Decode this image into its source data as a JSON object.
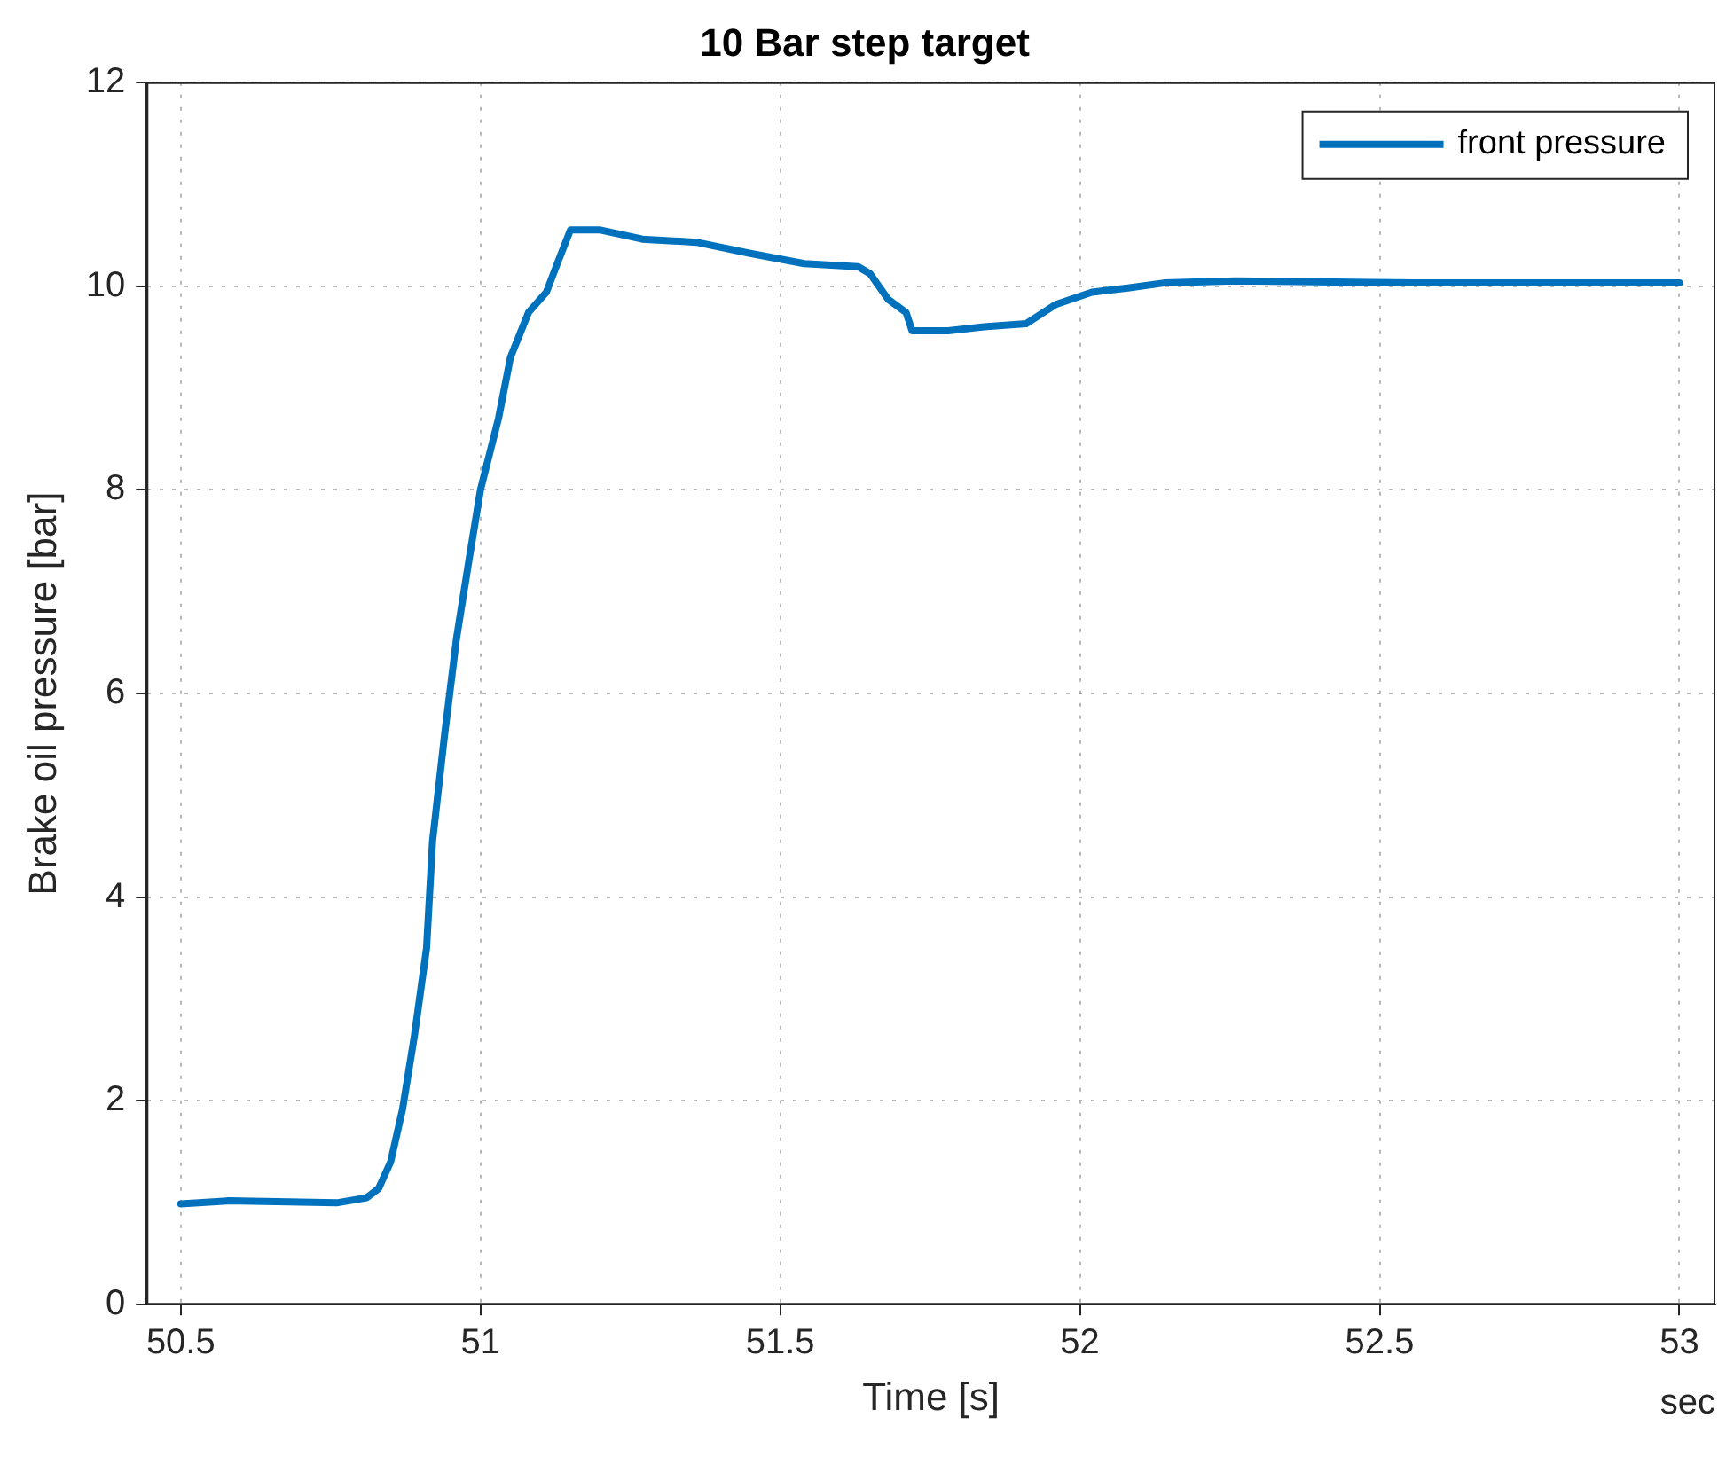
{
  "chart_data": {
    "type": "line",
    "title": "10 Bar step target",
    "xlabel": "Time [s]",
    "ylabel": "Brake oil pressure [bar]",
    "annotations": [
      "sec"
    ],
    "x": [
      50.5,
      50.58,
      50.76,
      50.81,
      50.83,
      50.85,
      50.87,
      50.89,
      50.91,
      50.92,
      50.94,
      50.96,
      50.98,
      51.0,
      51.03,
      51.05,
      51.08,
      51.11,
      51.13,
      51.15,
      51.2,
      51.27,
      51.36,
      51.45,
      51.54,
      51.63,
      51.65,
      51.68,
      51.71,
      51.72,
      51.78,
      51.84,
      51.91,
      51.96,
      52.02,
      52.08,
      52.14,
      52.26,
      52.56,
      52.86,
      53.0
    ],
    "series": [
      {
        "name": "front pressure",
        "color": "#0072bd",
        "values": [
          0.99,
          1.02,
          1.0,
          1.05,
          1.14,
          1.4,
          1.92,
          2.65,
          3.5,
          4.55,
          5.59,
          6.54,
          7.28,
          8.0,
          8.7,
          9.3,
          9.74,
          9.94,
          10.25,
          10.55,
          10.55,
          10.46,
          10.43,
          10.32,
          10.22,
          10.19,
          10.12,
          9.87,
          9.74,
          9.56,
          9.56,
          9.6,
          9.63,
          9.82,
          9.94,
          9.98,
          10.03,
          10.05,
          10.03,
          10.03,
          10.03
        ]
      }
    ],
    "xlim": [
      50.443,
      53.06
    ],
    "xticks": [
      50.5,
      51,
      51.5,
      52,
      52.5,
      53
    ],
    "ylim": [
      0,
      12
    ],
    "yticks": [
      0,
      2,
      4,
      6,
      8,
      10,
      12
    ],
    "grid": true,
    "legend": "top right",
    "marker": "none",
    "line_style": "solid"
  }
}
